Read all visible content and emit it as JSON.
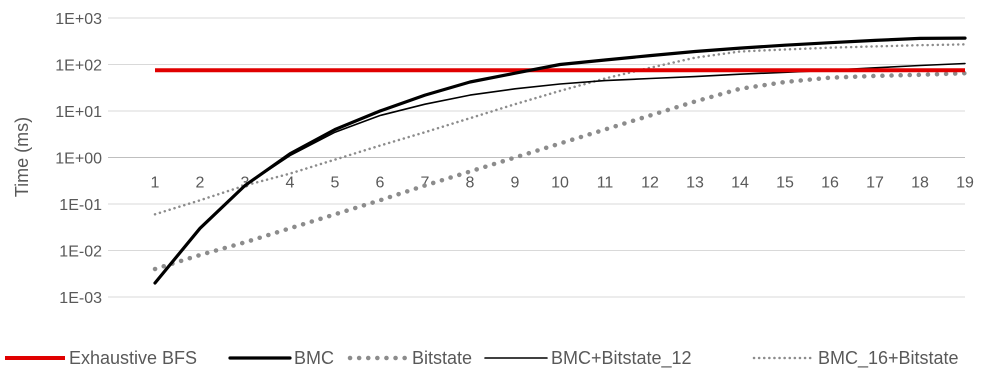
{
  "chart_data": {
    "type": "line",
    "xlabel": "",
    "ylabel": "Time (ms)",
    "y_scale": "log10",
    "ylim": [
      0.001,
      1000
    ],
    "y_ticks": [
      "1E-03",
      "1E-02",
      "1E-01",
      "1E+00",
      "1E+01",
      "1E+02",
      "1E+03"
    ],
    "x": [
      1,
      2,
      3,
      4,
      5,
      6,
      7,
      8,
      9,
      10,
      11,
      12,
      13,
      14,
      15,
      16,
      17,
      18,
      19
    ],
    "x_tick_labels": [
      "1",
      "2",
      "3",
      "4",
      "5",
      "6",
      "7",
      "8",
      "9",
      "10",
      "11",
      "12",
      "13",
      "14",
      "15",
      "16",
      "17",
      "18",
      "19"
    ],
    "x_axis_crosses_at": 1,
    "grid": true,
    "legend_position": "bottom",
    "series": [
      {
        "name": "Exhaustive BFS",
        "color": "#e00000",
        "style": "solid-thick",
        "values": [
          75,
          75,
          75,
          75,
          75,
          75,
          75,
          75,
          75,
          75,
          75,
          75,
          75,
          75,
          75,
          75,
          75,
          75,
          75
        ]
      },
      {
        "name": "BMC",
        "color": "#000000",
        "style": "solid-bold",
        "values": [
          0.002,
          0.03,
          0.25,
          1.2,
          4,
          10,
          22,
          42,
          65,
          100,
          125,
          155,
          190,
          225,
          260,
          295,
          330,
          365,
          370
        ]
      },
      {
        "name": "Bitstate",
        "color": "#8c8c8c",
        "style": "round-dot",
        "values": [
          0.004,
          0.008,
          0.015,
          0.03,
          0.06,
          0.12,
          0.25,
          0.5,
          1,
          2,
          4,
          8,
          16,
          30,
          42,
          52,
          57,
          60,
          65
        ]
      },
      {
        "name": "BMC+Bitstate_12",
        "color": "#000000",
        "style": "solid-thin",
        "values": [
          0.002,
          0.03,
          0.25,
          1.1,
          3.5,
          8,
          14,
          22,
          30,
          38,
          45,
          50,
          55,
          62,
          68,
          75,
          85,
          95,
          105
        ]
      },
      {
        "name": "BMC_16+Bitstate",
        "color": "#8c8c8c",
        "style": "small-dot",
        "values": [
          0.06,
          0.12,
          0.25,
          0.45,
          0.9,
          1.8,
          3.5,
          7,
          14,
          27,
          50,
          85,
          140,
          190,
          210,
          230,
          245,
          260,
          270
        ]
      }
    ]
  }
}
